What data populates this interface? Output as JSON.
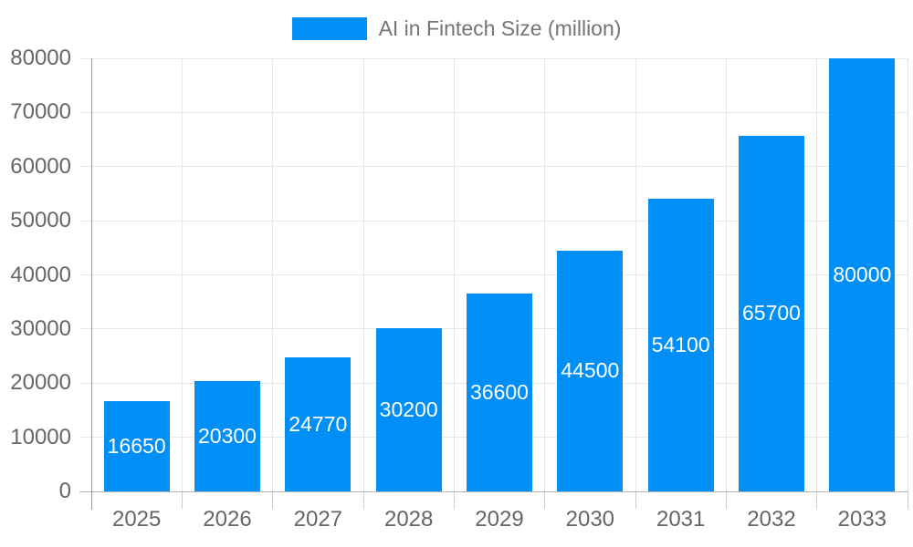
{
  "chart_data": {
    "type": "bar",
    "title": "",
    "legend_label": "AI in Fintech Size (million)",
    "legend_position": "top",
    "categories": [
      "2025",
      "2026",
      "2027",
      "2028",
      "2029",
      "2030",
      "2031",
      "2032",
      "2033"
    ],
    "values": [
      16650,
      20300,
      24770,
      30200,
      36600,
      44500,
      54100,
      65700,
      80000
    ],
    "bar_value_labels": [
      "16650",
      "20300",
      "24770",
      "30200",
      "36600",
      "44500",
      "54100",
      "65700",
      "80000"
    ],
    "xlabel": "",
    "ylabel": "",
    "ylim": [
      0,
      80000
    ],
    "ytick_interval": 10000,
    "y_tick_labels": [
      "0",
      "10000",
      "20000",
      "30000",
      "40000",
      "50000",
      "60000",
      "70000",
      "80000"
    ],
    "grid": true
  },
  "colors": {
    "bar": "#008FF7",
    "bar_label": "#ffffff",
    "grid": "#e6e6e6",
    "baseline": "#b3b3b3",
    "axis": "#999999",
    "tick": "#cccccc",
    "tick_label": "#666666",
    "legend_text": "#757575",
    "background": "#ffffff"
  }
}
